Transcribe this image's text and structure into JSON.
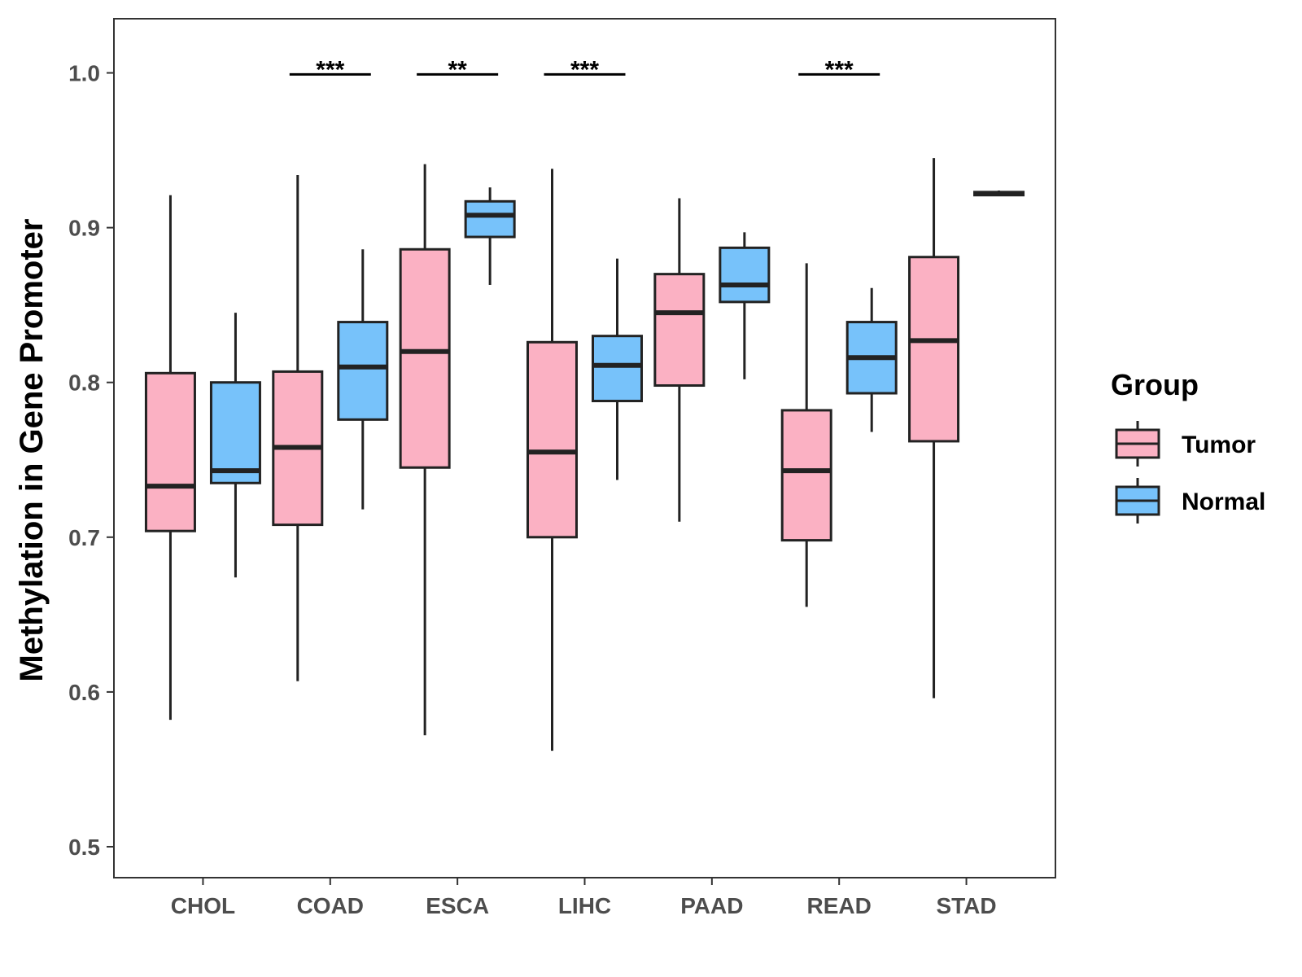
{
  "chart_data": {
    "type": "boxplot",
    "title": "",
    "xlabel": "",
    "ylabel": "Methylation in Gene Promoter",
    "ylim": [
      0.48,
      1.035
    ],
    "yticks": [
      0.5,
      0.6,
      0.7,
      0.8,
      0.9,
      1.0
    ],
    "ytick_labels": [
      "0.5",
      "0.6",
      "0.7",
      "0.8",
      "0.9",
      "1.0"
    ],
    "categories": [
      "CHOL",
      "COAD",
      "ESCA",
      "LIHC",
      "PAAD",
      "READ",
      "STAD"
    ],
    "legend": {
      "title": "Group",
      "position": "right",
      "entries": [
        "Tumor",
        "Normal"
      ]
    },
    "series": [
      {
        "name": "Tumor",
        "color": "#FBB1C3",
        "boxes": [
          {
            "category": "CHOL",
            "min": 0.582,
            "q1": 0.704,
            "median": 0.733,
            "q3": 0.806,
            "max": 0.921
          },
          {
            "category": "COAD",
            "min": 0.607,
            "q1": 0.708,
            "median": 0.758,
            "q3": 0.807,
            "max": 0.934
          },
          {
            "category": "ESCA",
            "min": 0.572,
            "q1": 0.745,
            "median": 0.82,
            "q3": 0.886,
            "max": 0.941
          },
          {
            "category": "LIHC",
            "min": 0.562,
            "q1": 0.7,
            "median": 0.755,
            "q3": 0.826,
            "max": 0.938
          },
          {
            "category": "PAAD",
            "min": 0.71,
            "q1": 0.798,
            "median": 0.845,
            "q3": 0.87,
            "max": 0.919
          },
          {
            "category": "READ",
            "min": 0.655,
            "q1": 0.698,
            "median": 0.743,
            "q3": 0.782,
            "max": 0.877
          },
          {
            "category": "STAD",
            "min": 0.596,
            "q1": 0.762,
            "median": 0.827,
            "q3": 0.881,
            "max": 0.945
          }
        ]
      },
      {
        "name": "Normal",
        "color": "#77C2FA",
        "boxes": [
          {
            "category": "CHOL",
            "min": 0.674,
            "q1": 0.735,
            "median": 0.743,
            "q3": 0.8,
            "max": 0.845
          },
          {
            "category": "COAD",
            "min": 0.718,
            "q1": 0.776,
            "median": 0.81,
            "q3": 0.839,
            "max": 0.886
          },
          {
            "category": "ESCA",
            "min": 0.863,
            "q1": 0.894,
            "median": 0.908,
            "q3": 0.917,
            "max": 0.926
          },
          {
            "category": "LIHC",
            "min": 0.737,
            "q1": 0.788,
            "median": 0.811,
            "q3": 0.83,
            "max": 0.88
          },
          {
            "category": "PAAD",
            "min": 0.802,
            "q1": 0.852,
            "median": 0.863,
            "q3": 0.887,
            "max": 0.897
          },
          {
            "category": "READ",
            "min": 0.768,
            "q1": 0.793,
            "median": 0.816,
            "q3": 0.839,
            "max": 0.861
          },
          {
            "category": "STAD",
            "min": 0.921,
            "q1": 0.921,
            "median": 0.922,
            "q3": 0.923,
            "max": 0.924
          }
        ]
      }
    ],
    "annotations": [
      {
        "category": "COAD",
        "label": "***",
        "y": 0.999
      },
      {
        "category": "ESCA",
        "label": "**",
        "y": 0.999
      },
      {
        "category": "LIHC",
        "label": "***",
        "y": 0.999
      },
      {
        "category": "READ",
        "label": "***",
        "y": 0.999
      }
    ]
  }
}
